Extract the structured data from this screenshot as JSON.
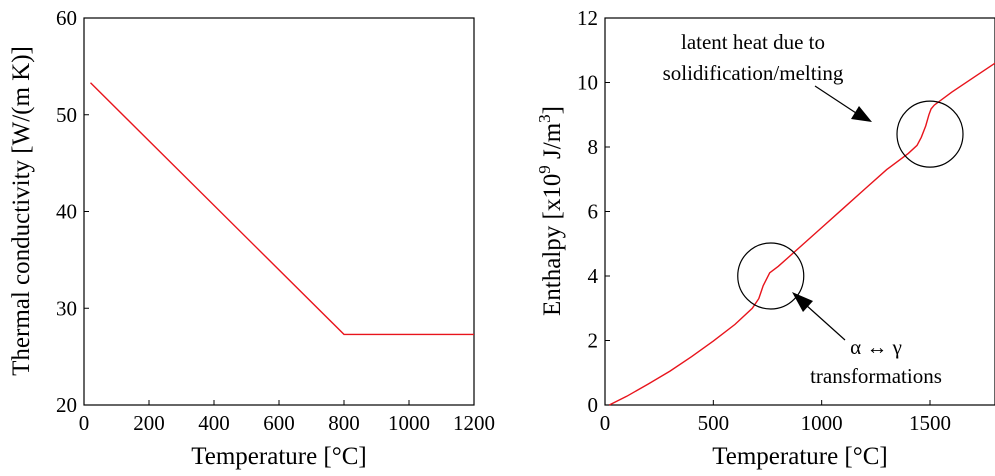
{
  "chart_data": [
    {
      "type": "line",
      "xlabel": "Temperature [°C]",
      "ylabel": "Thermal conductivity [W/(m K)]",
      "xlim": [
        0,
        1200
      ],
      "ylim": [
        20,
        60
      ],
      "xticks": [
        0,
        200,
        400,
        600,
        800,
        1000,
        1200
      ],
      "yticks": [
        20,
        30,
        40,
        50,
        60
      ],
      "grid": false,
      "series": [
        {
          "color": "#e8141c",
          "x": [
            20,
            800,
            1200
          ],
          "y": [
            53.3,
            27.3,
            27.3
          ]
        }
      ]
    },
    {
      "type": "line",
      "xlabel": "Temperature [°C]",
      "ylabel_parts": [
        "Enthalpy [x10",
        "9",
        " J/m",
        "3",
        "]"
      ],
      "xlim": [
        0,
        1800
      ],
      "ylim": [
        0,
        12
      ],
      "xticks": [
        0,
        500,
        1000,
        1500
      ],
      "yticks": [
        0,
        2,
        4,
        6,
        8,
        10,
        12
      ],
      "grid": false,
      "series": [
        {
          "color": "#e8141c",
          "x": [
            20,
            100,
            200,
            300,
            400,
            500,
            600,
            680,
            710,
            730,
            760,
            800,
            850,
            900,
            1000,
            1100,
            1200,
            1300,
            1400,
            1440,
            1460,
            1480,
            1495,
            1505,
            1520,
            1600,
            1700,
            1800
          ],
          "y": [
            0.0,
            0.27,
            0.65,
            1.05,
            1.5,
            1.98,
            2.5,
            3.0,
            3.3,
            3.7,
            4.1,
            4.3,
            4.6,
            4.9,
            5.5,
            6.1,
            6.7,
            7.3,
            7.8,
            8.05,
            8.3,
            8.65,
            9.0,
            9.18,
            9.3,
            9.7,
            10.15,
            10.6
          ]
        }
      ],
      "annotations": [
        {
          "lines": [
            "latent heat due to",
            "solidification/melting"
          ],
          "circle_center": [
            1500,
            8.4
          ]
        },
        {
          "lines": [
            "α ↔ γ",
            "transformations"
          ],
          "circle_center": [
            765,
            4.0
          ]
        }
      ]
    }
  ]
}
